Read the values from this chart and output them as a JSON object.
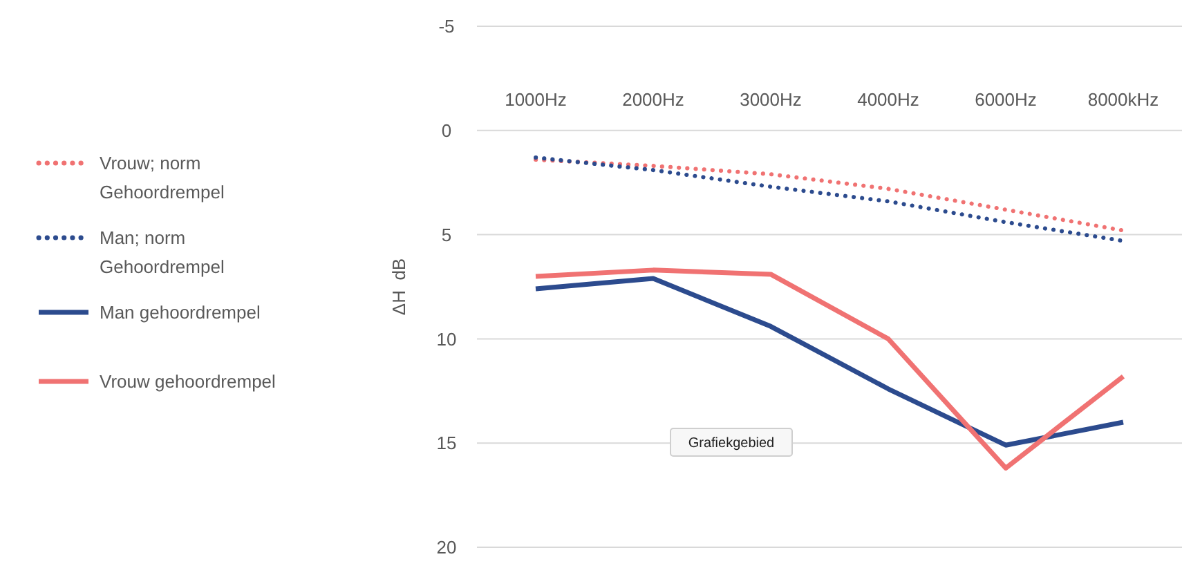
{
  "chart_data": {
    "type": "line",
    "ylabel": "ΔH  dB",
    "categories": [
      "1000Hz",
      "2000Hz",
      "3000Hz",
      "4000Hz",
      "6000Hz",
      "8000kHz"
    ],
    "series": [
      {
        "name": "Vrouw; norm Gehoordrempel",
        "color": "#f07272",
        "line_style": "dotted",
        "values": [
          1.4,
          1.7,
          2.1,
          2.8,
          3.8,
          4.8
        ]
      },
      {
        "name": "Man; norm Gehoordrempel",
        "color": "#2c4b8e",
        "line_style": "dotted",
        "values": [
          1.3,
          1.9,
          2.7,
          3.4,
          4.4,
          5.3
        ]
      },
      {
        "name": "Man gehoordrempel",
        "color": "#2c4b8e",
        "line_style": "solid",
        "values": [
          7.6,
          7.1,
          9.4,
          12.4,
          15.1,
          14.0
        ]
      },
      {
        "name": "Vrouw gehoordrempel",
        "color": "#f07272",
        "line_style": "solid",
        "values": [
          7.0,
          6.7,
          6.9,
          10.0,
          16.2,
          11.8
        ]
      }
    ],
    "ylim": [
      20,
      -5
    ],
    "yticks": [
      -5,
      0,
      5,
      10,
      15,
      20
    ],
    "grid": "y",
    "legend": "left",
    "marker": "none",
    "annotations": [
      "Grafiekgebied"
    ]
  }
}
